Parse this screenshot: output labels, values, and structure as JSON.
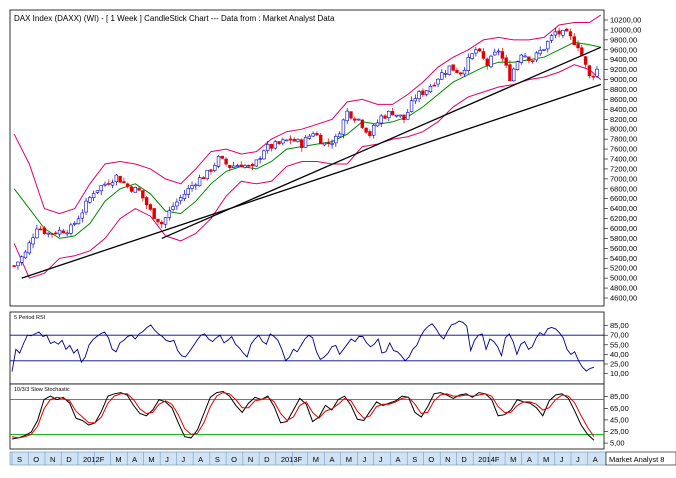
{
  "chart_data": [
    {
      "type": "candlestick",
      "title": "DAX Index (DAXX) (WI) -  [ 1 Week ] CandleStick Chart --- Data from : Market Analyst Data",
      "ylim": [
        4600,
        10200
      ],
      "y_ticks": [
        "10200,00",
        "10000,00",
        "9800,00",
        "9600,00",
        "9400,00",
        "9200,00",
        "9000,00",
        "8800,00",
        "8600,00",
        "8400,00",
        "8200,00",
        "8000,00",
        "7800,00",
        "7600,00",
        "7400,00",
        "7200,00",
        "7000,00",
        "6800,00",
        "6600,00",
        "6400,00",
        "6200,00",
        "6000,00",
        "5800,00",
        "5600,00",
        "5400,00",
        "5200,00",
        "5000,00",
        "4800,00",
        "4600,00"
      ],
      "x_time_axis": {
        "start": "2011-09",
        "end": "2014-08"
      },
      "close_path": [
        {
          "x": "2011-09-05",
          "y": 5250
        },
        {
          "x": "2011-09-26",
          "y": 5500
        },
        {
          "x": "2011-10-17",
          "y": 6050
        },
        {
          "x": "2011-11-07",
          "y": 5900
        },
        {
          "x": "2011-11-28",
          "y": 5950
        },
        {
          "x": "2011-12-19",
          "y": 6000
        },
        {
          "x": "2012-01-09",
          "y": 6350
        },
        {
          "x": "2012-01-30",
          "y": 6750
        },
        {
          "x": "2012-02-20",
          "y": 6900
        },
        {
          "x": "2012-03-12",
          "y": 7050
        },
        {
          "x": "2012-04-02",
          "y": 6850
        },
        {
          "x": "2012-04-23",
          "y": 6750
        },
        {
          "x": "2012-05-14",
          "y": 6350
        },
        {
          "x": "2012-06-04",
          "y": 6100
        },
        {
          "x": "2012-06-25",
          "y": 6450
        },
        {
          "x": "2012-07-16",
          "y": 6700
        },
        {
          "x": "2012-08-06",
          "y": 6950
        },
        {
          "x": "2012-08-27",
          "y": 7100
        },
        {
          "x": "2012-09-17",
          "y": 7400
        },
        {
          "x": "2012-10-08",
          "y": 7250
        },
        {
          "x": "2012-10-29",
          "y": 7300
        },
        {
          "x": "2012-11-19",
          "y": 7200
        },
        {
          "x": "2012-12-10",
          "y": 7600
        },
        {
          "x": "2013-01-07",
          "y": 7700
        },
        {
          "x": "2013-01-28",
          "y": 7800
        },
        {
          "x": "2013-02-18",
          "y": 7700
        },
        {
          "x": "2013-03-11",
          "y": 7950
        },
        {
          "x": "2013-04-01",
          "y": 7700
        },
        {
          "x": "2013-04-22",
          "y": 7800
        },
        {
          "x": "2013-05-13",
          "y": 8350
        },
        {
          "x": "2013-06-03",
          "y": 8200
        },
        {
          "x": "2013-06-24",
          "y": 7900
        },
        {
          "x": "2013-07-15",
          "y": 8250
        },
        {
          "x": "2013-08-05",
          "y": 8350
        },
        {
          "x": "2013-08-26",
          "y": 8200
        },
        {
          "x": "2013-09-16",
          "y": 8650
        },
        {
          "x": "2013-10-07",
          "y": 8800
        },
        {
          "x": "2013-10-28",
          "y": 9050
        },
        {
          "x": "2013-11-18",
          "y": 9250
        },
        {
          "x": "2013-12-09",
          "y": 9150
        },
        {
          "x": "2014-01-06",
          "y": 9600
        },
        {
          "x": "2014-01-27",
          "y": 9300
        },
        {
          "x": "2014-02-17",
          "y": 9600
        },
        {
          "x": "2014-03-10",
          "y": 9050
        },
        {
          "x": "2014-03-31",
          "y": 9550
        },
        {
          "x": "2014-04-21",
          "y": 9400
        },
        {
          "x": "2014-05-12",
          "y": 9650
        },
        {
          "x": "2014-06-02",
          "y": 9950
        },
        {
          "x": "2014-06-23",
          "y": 9900
        },
        {
          "x": "2014-07-14",
          "y": 9700
        },
        {
          "x": "2014-08-04",
          "y": 9050
        },
        {
          "x": "2014-08-18",
          "y": 9200
        }
      ],
      "bollinger_upper": [
        {
          "x": "2011-09-05",
          "y": 7900
        },
        {
          "x": "2011-10-03",
          "y": 7300
        },
        {
          "x": "2011-10-31",
          "y": 6400
        },
        {
          "x": "2011-11-28",
          "y": 6300
        },
        {
          "x": "2011-12-26",
          "y": 6400
        },
        {
          "x": "2012-01-23",
          "y": 6900
        },
        {
          "x": "2012-02-20",
          "y": 7300
        },
        {
          "x": "2012-03-19",
          "y": 7350
        },
        {
          "x": "2012-04-16",
          "y": 7300
        },
        {
          "x": "2012-05-14",
          "y": 7200
        },
        {
          "x": "2012-06-11",
          "y": 7000
        },
        {
          "x": "2012-07-09",
          "y": 6900
        },
        {
          "x": "2012-08-06",
          "y": 7200
        },
        {
          "x": "2012-09-03",
          "y": 7550
        },
        {
          "x": "2012-10-01",
          "y": 7600
        },
        {
          "x": "2012-10-29",
          "y": 7500
        },
        {
          "x": "2012-11-26",
          "y": 7550
        },
        {
          "x": "2012-12-24",
          "y": 7800
        },
        {
          "x": "2013-01-21",
          "y": 7950
        },
        {
          "x": "2013-02-18",
          "y": 8000
        },
        {
          "x": "2013-03-18",
          "y": 8100
        },
        {
          "x": "2013-04-15",
          "y": 8200
        },
        {
          "x": "2013-05-13",
          "y": 8550
        },
        {
          "x": "2013-06-10",
          "y": 8600
        },
        {
          "x": "2013-07-08",
          "y": 8500
        },
        {
          "x": "2013-08-05",
          "y": 8500
        },
        {
          "x": "2013-09-02",
          "y": 8700
        },
        {
          "x": "2013-09-30",
          "y": 8950
        },
        {
          "x": "2013-10-28",
          "y": 9250
        },
        {
          "x": "2013-11-25",
          "y": 9450
        },
        {
          "x": "2013-12-23",
          "y": 9600
        },
        {
          "x": "2014-01-20",
          "y": 9800
        },
        {
          "x": "2014-02-17",
          "y": 9850
        },
        {
          "x": "2014-03-17",
          "y": 9800
        },
        {
          "x": "2014-04-14",
          "y": 9800
        },
        {
          "x": "2014-05-12",
          "y": 9850
        },
        {
          "x": "2014-06-09",
          "y": 10100
        },
        {
          "x": "2014-07-07",
          "y": 10150
        },
        {
          "x": "2014-08-04",
          "y": 10150
        },
        {
          "x": "2014-08-25",
          "y": 10300
        }
      ],
      "bollinger_middle": [
        {
          "x": "2011-09-05",
          "y": 6800
        },
        {
          "x": "2011-10-03",
          "y": 6400
        },
        {
          "x": "2011-10-31",
          "y": 6000
        },
        {
          "x": "2011-11-28",
          "y": 5800
        },
        {
          "x": "2011-12-26",
          "y": 5850
        },
        {
          "x": "2012-01-23",
          "y": 6100
        },
        {
          "x": "2012-02-20",
          "y": 6550
        },
        {
          "x": "2012-03-19",
          "y": 6800
        },
        {
          "x": "2012-04-16",
          "y": 6900
        },
        {
          "x": "2012-05-14",
          "y": 6700
        },
        {
          "x": "2012-06-11",
          "y": 6350
        },
        {
          "x": "2012-07-09",
          "y": 6300
        },
        {
          "x": "2012-08-06",
          "y": 6550
        },
        {
          "x": "2012-09-03",
          "y": 6900
        },
        {
          "x": "2012-10-01",
          "y": 7150
        },
        {
          "x": "2012-10-29",
          "y": 7250
        },
        {
          "x": "2012-11-26",
          "y": 7200
        },
        {
          "x": "2012-12-24",
          "y": 7350
        },
        {
          "x": "2013-01-21",
          "y": 7600
        },
        {
          "x": "2013-02-18",
          "y": 7650
        },
        {
          "x": "2013-03-18",
          "y": 7700
        },
        {
          "x": "2013-04-15",
          "y": 7750
        },
        {
          "x": "2013-05-13",
          "y": 7900
        },
        {
          "x": "2013-06-10",
          "y": 8150
        },
        {
          "x": "2013-07-08",
          "y": 8100
        },
        {
          "x": "2013-08-05",
          "y": 8150
        },
        {
          "x": "2013-09-02",
          "y": 8250
        },
        {
          "x": "2013-09-30",
          "y": 8450
        },
        {
          "x": "2013-10-28",
          "y": 8700
        },
        {
          "x": "2013-11-25",
          "y": 8950
        },
        {
          "x": "2013-12-23",
          "y": 9100
        },
        {
          "x": "2014-01-20",
          "y": 9250
        },
        {
          "x": "2014-02-17",
          "y": 9350
        },
        {
          "x": "2014-03-17",
          "y": 9350
        },
        {
          "x": "2014-04-14",
          "y": 9400
        },
        {
          "x": "2014-05-12",
          "y": 9450
        },
        {
          "x": "2014-06-09",
          "y": 9600
        },
        {
          "x": "2014-07-07",
          "y": 9750
        },
        {
          "x": "2014-08-04",
          "y": 9700
        },
        {
          "x": "2014-08-25",
          "y": 9650
        }
      ],
      "bollinger_lower": [
        {
          "x": "2011-09-05",
          "y": 5700
        },
        {
          "x": "2011-10-03",
          "y": 5000
        },
        {
          "x": "2011-10-31",
          "y": 5100
        },
        {
          "x": "2011-11-28",
          "y": 5400
        },
        {
          "x": "2011-12-26",
          "y": 5450
        },
        {
          "x": "2012-01-23",
          "y": 5550
        },
        {
          "x": "2012-02-20",
          "y": 5800
        },
        {
          "x": "2012-03-19",
          "y": 6200
        },
        {
          "x": "2012-04-16",
          "y": 6400
        },
        {
          "x": "2012-05-14",
          "y": 6250
        },
        {
          "x": "2012-06-11",
          "y": 5850
        },
        {
          "x": "2012-07-09",
          "y": 5750
        },
        {
          "x": "2012-08-06",
          "y": 5900
        },
        {
          "x": "2012-09-03",
          "y": 6200
        },
        {
          "x": "2012-10-01",
          "y": 6650
        },
        {
          "x": "2012-10-29",
          "y": 6950
        },
        {
          "x": "2012-11-26",
          "y": 6900
        },
        {
          "x": "2012-12-24",
          "y": 6950
        },
        {
          "x": "2013-01-21",
          "y": 7250
        },
        {
          "x": "2013-02-18",
          "y": 7350
        },
        {
          "x": "2013-03-18",
          "y": 7350
        },
        {
          "x": "2013-04-15",
          "y": 7300
        },
        {
          "x": "2013-05-13",
          "y": 7300
        },
        {
          "x": "2013-06-10",
          "y": 7650
        },
        {
          "x": "2013-07-08",
          "y": 7700
        },
        {
          "x": "2013-08-05",
          "y": 7800
        },
        {
          "x": "2013-09-02",
          "y": 7850
        },
        {
          "x": "2013-09-30",
          "y": 7950
        },
        {
          "x": "2013-10-28",
          "y": 8150
        },
        {
          "x": "2013-11-25",
          "y": 8450
        },
        {
          "x": "2013-12-23",
          "y": 8650
        },
        {
          "x": "2014-01-20",
          "y": 8750
        },
        {
          "x": "2014-02-17",
          "y": 8850
        },
        {
          "x": "2014-03-17",
          "y": 8900
        },
        {
          "x": "2014-04-14",
          "y": 9000
        },
        {
          "x": "2014-05-12",
          "y": 9050
        },
        {
          "x": "2014-06-09",
          "y": 9150
        },
        {
          "x": "2014-07-07",
          "y": 9300
        },
        {
          "x": "2014-08-04",
          "y": 9200
        },
        {
          "x": "2014-08-25",
          "y": 9000
        }
      ],
      "trendlines": [
        {
          "x1": "2011-09-19",
          "y1": 5000,
          "x2": "2014-08-25",
          "y2": 8900
        },
        {
          "x1": "2012-06-04",
          "y1": 5800,
          "x2": "2014-08-25",
          "y2": 9650
        }
      ]
    },
    {
      "type": "line",
      "title": "5 Period RSI",
      "ylim": [
        0,
        100
      ],
      "y_ticks": [
        "85,00",
        "70,00",
        "55,00",
        "40,00",
        "25,00",
        "10,00"
      ],
      "reference_lines": [
        70,
        30
      ],
      "values": [
        13,
        48,
        42,
        57,
        70,
        69,
        72,
        75,
        68,
        70,
        57,
        60,
        56,
        62,
        48,
        54,
        42,
        48,
        28,
        36,
        55,
        63,
        68,
        72,
        75,
        66,
        48,
        44,
        58,
        62,
        68,
        70,
        64,
        72,
        76,
        82,
        86,
        78,
        72,
        68,
        62,
        60,
        62,
        46,
        38,
        36,
        44,
        53,
        62,
        70,
        72,
        64,
        60,
        66,
        70,
        58,
        62,
        68,
        56,
        50,
        42,
        36,
        56,
        64,
        70,
        60,
        56,
        72,
        68,
        62,
        48,
        30,
        36,
        48,
        44,
        54,
        64,
        70,
        66,
        44,
        32,
        36,
        42,
        52,
        54,
        40,
        48,
        56,
        64,
        60,
        68,
        68,
        58,
        52,
        56,
        64,
        42,
        44,
        58,
        46,
        44,
        38,
        30,
        36,
        48,
        54,
        68,
        78,
        84,
        88,
        80,
        70,
        64,
        76,
        86,
        88,
        92,
        90,
        84,
        46,
        62,
        70,
        72,
        48,
        64,
        60,
        52,
        38,
        66,
        72,
        60,
        40,
        56,
        60,
        48,
        52,
        66,
        74,
        70,
        80,
        82,
        80,
        74,
        66,
        48,
        40,
        44,
        30,
        20,
        14,
        18,
        20
      ]
    },
    {
      "type": "line",
      "title": "10/3/3 Slow Stochastic",
      "ylim": [
        0,
        100
      ],
      "y_ticks": [
        "85,00",
        "65,00",
        "45,00",
        "25,00",
        "5,00"
      ],
      "reference_lines": [
        80,
        20
      ],
      "series": [
        {
          "values": [
            12,
            14,
            18,
            24,
            44,
            80,
            86,
            80,
            84,
            74,
            48,
            44,
            36,
            40,
            60,
            86,
            90,
            92,
            88,
            70,
            56,
            52,
            62,
            80,
            76,
            66,
            40,
            16,
            14,
            28,
            56,
            84,
            92,
            94,
            86,
            70,
            58,
            74,
            84,
            80,
            86,
            68,
            40,
            42,
            62,
            82,
            72,
            42,
            50,
            70,
            62,
            80,
            86,
            70,
            46,
            44,
            60,
            76,
            70,
            74,
            78,
            86,
            84,
            58,
            50,
            68,
            90,
            92,
            88,
            82,
            88,
            90,
            84,
            92,
            90,
            80,
            52,
            54,
            62,
            80,
            76,
            74,
            66,
            52,
            78,
            88,
            90,
            82,
            60,
            36,
            20,
            10
          ]
        },
        {
          "values": [
            16,
            14,
            16,
            20,
            34,
            64,
            80,
            84,
            82,
            78,
            60,
            50,
            40,
            40,
            50,
            74,
            86,
            90,
            90,
            80,
            64,
            56,
            58,
            72,
            78,
            72,
            54,
            30,
            20,
            22,
            40,
            68,
            86,
            92,
            90,
            80,
            66,
            66,
            78,
            80,
            84,
            76,
            56,
            44,
            50,
            70,
            76,
            58,
            48,
            60,
            64,
            72,
            82,
            78,
            60,
            48,
            52,
            68,
            72,
            72,
            76,
            82,
            84,
            72,
            56,
            58,
            78,
            88,
            90,
            86,
            86,
            88,
            86,
            88,
            90,
            86,
            68,
            58,
            58,
            70,
            76,
            76,
            72,
            62,
            66,
            80,
            88,
            86,
            74,
            52,
            32,
            16
          ]
        }
      ]
    }
  ],
  "x_axis": {
    "months": [
      "S",
      "O",
      "N",
      "D",
      "2012",
      "F",
      "M",
      "A",
      "M",
      "J",
      "J",
      "A",
      "S",
      "O",
      "N",
      "D",
      "2013",
      "F",
      "M",
      "A",
      "M",
      "J",
      "J",
      "A",
      "S",
      "O",
      "N",
      "D",
      "2014",
      "F",
      "M",
      "A",
      "M",
      "J",
      "J",
      "A"
    ]
  },
  "watermark": "Market Analyst 8",
  "colors": {
    "up_candle": "#0000cc",
    "down_candle": "#e00000",
    "bollinger": "#e0006e",
    "mid_band": "#008800",
    "trendline": "#000000",
    "rsi_line": "#000088",
    "rsi_ref": "#000088",
    "stoch_k": "#000000",
    "stoch_d": "#e00000",
    "stoch_ref": "#00aa00"
  }
}
